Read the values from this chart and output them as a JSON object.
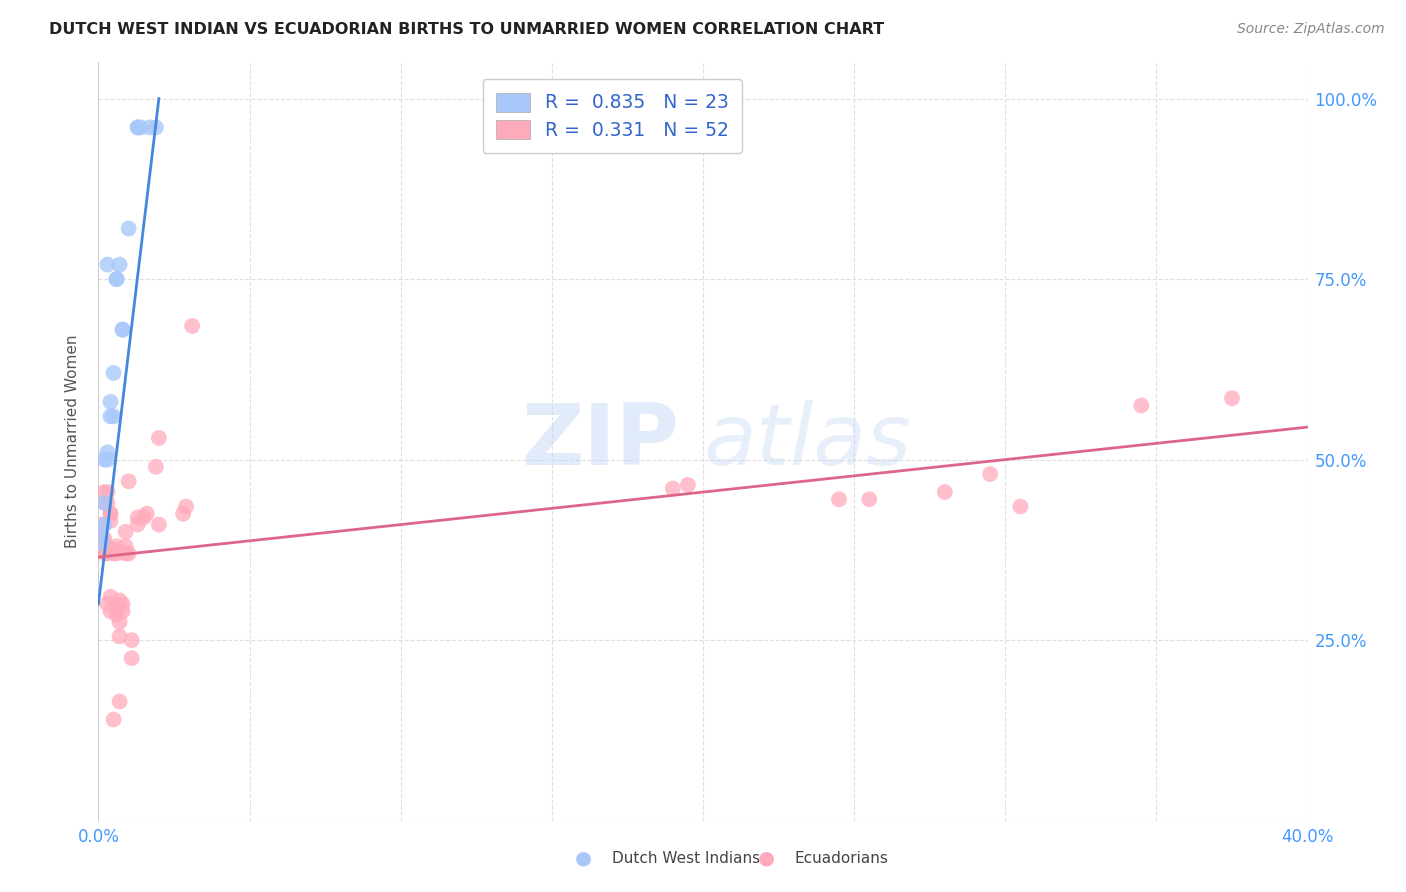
{
  "title": "DUTCH WEST INDIAN VS ECUADORIAN BIRTHS TO UNMARRIED WOMEN CORRELATION CHART",
  "source": "Source: ZipAtlas.com",
  "ylabel": "Births to Unmarried Women",
  "xlim": [
    0,
    0.4
  ],
  "ylim": [
    0,
    1.05
  ],
  "xtick_vals": [
    0,
    0.05,
    0.1,
    0.15,
    0.2,
    0.25,
    0.3,
    0.35,
    0.4
  ],
  "ytick_vals": [
    0,
    0.25,
    0.5,
    0.75,
    1.0
  ],
  "ytick_labels": [
    "",
    "25.0%",
    "50.0%",
    "75.0%",
    "100.0%"
  ],
  "blue_scatter": [
    [
      0.001,
      0.385
    ],
    [
      0.001,
      0.395
    ],
    [
      0.002,
      0.41
    ],
    [
      0.002,
      0.44
    ],
    [
      0.002,
      0.5
    ],
    [
      0.003,
      0.51
    ],
    [
      0.003,
      0.5
    ],
    [
      0.004,
      0.56
    ],
    [
      0.004,
      0.58
    ],
    [
      0.005,
      0.62
    ],
    [
      0.005,
      0.56
    ],
    [
      0.006,
      0.75
    ],
    [
      0.006,
      0.75
    ],
    [
      0.008,
      0.68
    ],
    [
      0.008,
      0.68
    ],
    [
      0.01,
      0.82
    ],
    [
      0.013,
      0.96
    ],
    [
      0.013,
      0.96
    ],
    [
      0.014,
      0.96
    ],
    [
      0.017,
      0.96
    ],
    [
      0.019,
      0.96
    ],
    [
      0.007,
      0.77
    ],
    [
      0.003,
      0.77
    ]
  ],
  "pink_scatter": [
    [
      0.001,
      0.375
    ],
    [
      0.001,
      0.385
    ],
    [
      0.001,
      0.395
    ],
    [
      0.001,
      0.41
    ],
    [
      0.002,
      0.37
    ],
    [
      0.002,
      0.375
    ],
    [
      0.002,
      0.38
    ],
    [
      0.002,
      0.39
    ],
    [
      0.002,
      0.44
    ],
    [
      0.002,
      0.455
    ],
    [
      0.003,
      0.3
    ],
    [
      0.003,
      0.37
    ],
    [
      0.003,
      0.375
    ],
    [
      0.003,
      0.38
    ],
    [
      0.003,
      0.44
    ],
    [
      0.003,
      0.455
    ],
    [
      0.004,
      0.29
    ],
    [
      0.004,
      0.31
    ],
    [
      0.004,
      0.375
    ],
    [
      0.004,
      0.415
    ],
    [
      0.004,
      0.425
    ],
    [
      0.004,
      0.425
    ],
    [
      0.005,
      0.14
    ],
    [
      0.005,
      0.37
    ],
    [
      0.005,
      0.375
    ],
    [
      0.006,
      0.285
    ],
    [
      0.006,
      0.295
    ],
    [
      0.006,
      0.37
    ],
    [
      0.006,
      0.38
    ],
    [
      0.007,
      0.165
    ],
    [
      0.007,
      0.255
    ],
    [
      0.007,
      0.275
    ],
    [
      0.007,
      0.305
    ],
    [
      0.008,
      0.29
    ],
    [
      0.008,
      0.3
    ],
    [
      0.009,
      0.37
    ],
    [
      0.009,
      0.38
    ],
    [
      0.009,
      0.4
    ],
    [
      0.01,
      0.47
    ],
    [
      0.01,
      0.37
    ],
    [
      0.011,
      0.225
    ],
    [
      0.011,
      0.25
    ],
    [
      0.013,
      0.41
    ],
    [
      0.013,
      0.42
    ],
    [
      0.015,
      0.42
    ],
    [
      0.016,
      0.425
    ],
    [
      0.019,
      0.49
    ],
    [
      0.02,
      0.53
    ],
    [
      0.02,
      0.41
    ],
    [
      0.028,
      0.425
    ],
    [
      0.029,
      0.435
    ],
    [
      0.031,
      0.685
    ],
    [
      0.19,
      0.46
    ],
    [
      0.195,
      0.465
    ],
    [
      0.245,
      0.445
    ],
    [
      0.255,
      0.445
    ],
    [
      0.28,
      0.455
    ],
    [
      0.295,
      0.48
    ],
    [
      0.305,
      0.435
    ],
    [
      0.345,
      0.575
    ],
    [
      0.375,
      0.585
    ]
  ],
  "blue_line_x": [
    0.0,
    0.02
  ],
  "blue_line_y": [
    0.3,
    1.0
  ],
  "pink_line_x": [
    0.0,
    0.4
  ],
  "pink_line_y": [
    0.365,
    0.545
  ],
  "watermark_zip": "ZIP",
  "watermark_atlas": "atlas",
  "blue_color": "#a8c8fa",
  "pink_color": "#ffaabb",
  "blue_line_color": "#4488dd",
  "pink_line_color": "#dd6688",
  "grid_color": "#e0e0e0",
  "tick_color": "#4499ff",
  "title_color": "#222222",
  "source_color": "#888888",
  "ylabel_color": "#555555"
}
